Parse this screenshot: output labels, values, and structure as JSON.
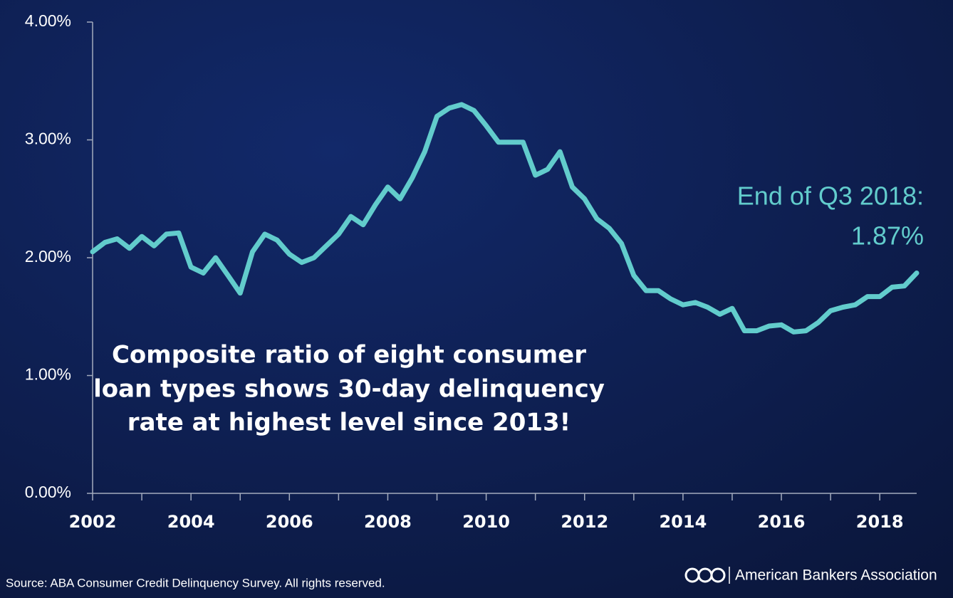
{
  "chart_data": {
    "type": "line",
    "color": "#62cccc",
    "x": [
      2002.0,
      2002.25,
      2002.5,
      2002.75,
      2003.0,
      2003.25,
      2003.5,
      2003.75,
      2004.0,
      2004.25,
      2004.5,
      2004.75,
      2005.0,
      2005.25,
      2005.5,
      2005.75,
      2006.0,
      2006.25,
      2006.5,
      2006.75,
      2007.0,
      2007.25,
      2007.5,
      2007.75,
      2008.0,
      2008.25,
      2008.5,
      2008.75,
      2009.0,
      2009.25,
      2009.5,
      2009.75,
      2010.0,
      2010.25,
      2010.5,
      2010.75,
      2011.0,
      2011.25,
      2011.5,
      2011.75,
      2012.0,
      2012.25,
      2012.5,
      2012.75,
      2013.0,
      2013.25,
      2013.5,
      2013.75,
      2014.0,
      2014.25,
      2014.5,
      2014.75,
      2015.0,
      2015.25,
      2015.5,
      2015.75,
      2016.0,
      2016.25,
      2016.5,
      2016.75,
      2017.0,
      2017.25,
      2017.5,
      2017.75,
      2018.0,
      2018.25,
      2018.5,
      2018.75
    ],
    "values": [
      2.05,
      2.13,
      2.16,
      2.08,
      2.18,
      2.1,
      2.2,
      2.21,
      1.92,
      1.87,
      2.0,
      1.85,
      1.7,
      2.05,
      2.2,
      2.15,
      2.03,
      1.96,
      2.0,
      2.1,
      2.2,
      2.35,
      2.28,
      2.45,
      2.6,
      2.5,
      2.68,
      2.9,
      3.2,
      3.27,
      3.3,
      3.25,
      3.12,
      2.98,
      2.98,
      2.98,
      2.7,
      2.75,
      2.9,
      2.6,
      2.5,
      2.33,
      2.25,
      2.12,
      1.85,
      1.72,
      1.72,
      1.65,
      1.6,
      1.62,
      1.58,
      1.52,
      1.57,
      1.38,
      1.38,
      1.42,
      1.43,
      1.37,
      1.38,
      1.45,
      1.55,
      1.58,
      1.6,
      1.67,
      1.67,
      1.75,
      1.76,
      1.87
    ],
    "xlim": [
      2002,
      2018.75
    ],
    "xticks": [
      2002,
      2004,
      2006,
      2008,
      2010,
      2012,
      2014,
      2016,
      2018
    ],
    "xminorticks": [
      2003,
      2005,
      2007,
      2009,
      2011,
      2013,
      2015,
      2017
    ],
    "ylim": [
      0,
      4
    ],
    "yticks": [
      {
        "value": 0,
        "label": "0.00%"
      },
      {
        "value": 1,
        "label": "1.00%"
      },
      {
        "value": 2,
        "label": "2.00%"
      },
      {
        "value": 3,
        "label": "3.00%"
      },
      {
        "value": 4,
        "label": "4.00%"
      }
    ],
    "annotation": [
      "End of Q3 2018:",
      "1.87%"
    ],
    "callout": [
      "Composite ratio of eight consumer",
      "loan types shows 30-day delinquency",
      "rate at highest level since 2013!"
    ]
  },
  "source": "Source: ABA Consumer Credit Delinquency Survey.  All rights reserved.",
  "logo": "American Bankers Association"
}
